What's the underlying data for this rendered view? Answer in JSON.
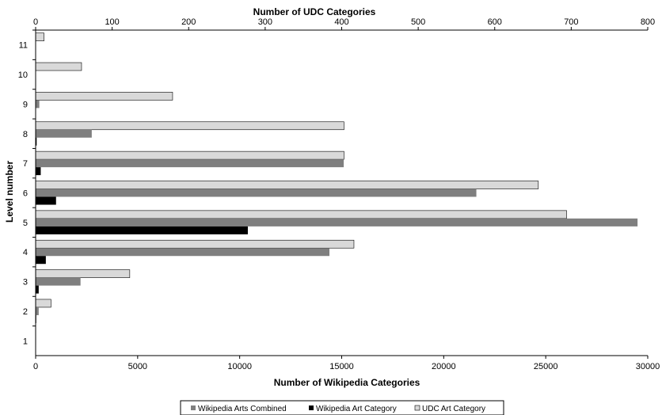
{
  "chart_data": {
    "type": "bar",
    "orientation": "horizontal",
    "categories": [
      "1",
      "2",
      "3",
      "4",
      "5",
      "6",
      "7",
      "8",
      "9",
      "10",
      "11"
    ],
    "ylabel": "Level number",
    "xlabel_bottom": "Number of Wikipedia  Categories",
    "xlabel_top": "Number of UDC Categories",
    "xlim_bottom": [
      0,
      30000
    ],
    "xticks_bottom": [
      "0",
      "5000",
      "10000",
      "15000",
      "20000",
      "25000",
      "30000"
    ],
    "xlim_top": [
      0,
      800
    ],
    "xticks_top": [
      "0",
      "100",
      "200",
      "300",
      "400",
      "500",
      "600",
      "700",
      "800"
    ],
    "grid": false,
    "legend_position": "bottom",
    "series": [
      {
        "name": "Wikipedia Arts Combined",
        "axis": "bottom",
        "color": "#7f7f7f",
        "values": [
          20,
          150,
          2200,
          14400,
          29500,
          21600,
          15100,
          2750,
          180,
          0,
          0
        ]
      },
      {
        "name": "Wikipedia Art Category",
        "axis": "bottom",
        "color": "#000000",
        "values": [
          10,
          30,
          150,
          500,
          10400,
          1000,
          250,
          50,
          10,
          20,
          0
        ]
      },
      {
        "name": "UDC Art Category",
        "axis": "top",
        "color": "#d9d9d9",
        "values": [
          0,
          20,
          123,
          416,
          694,
          657,
          403,
          403,
          179,
          60,
          11
        ]
      }
    ]
  }
}
